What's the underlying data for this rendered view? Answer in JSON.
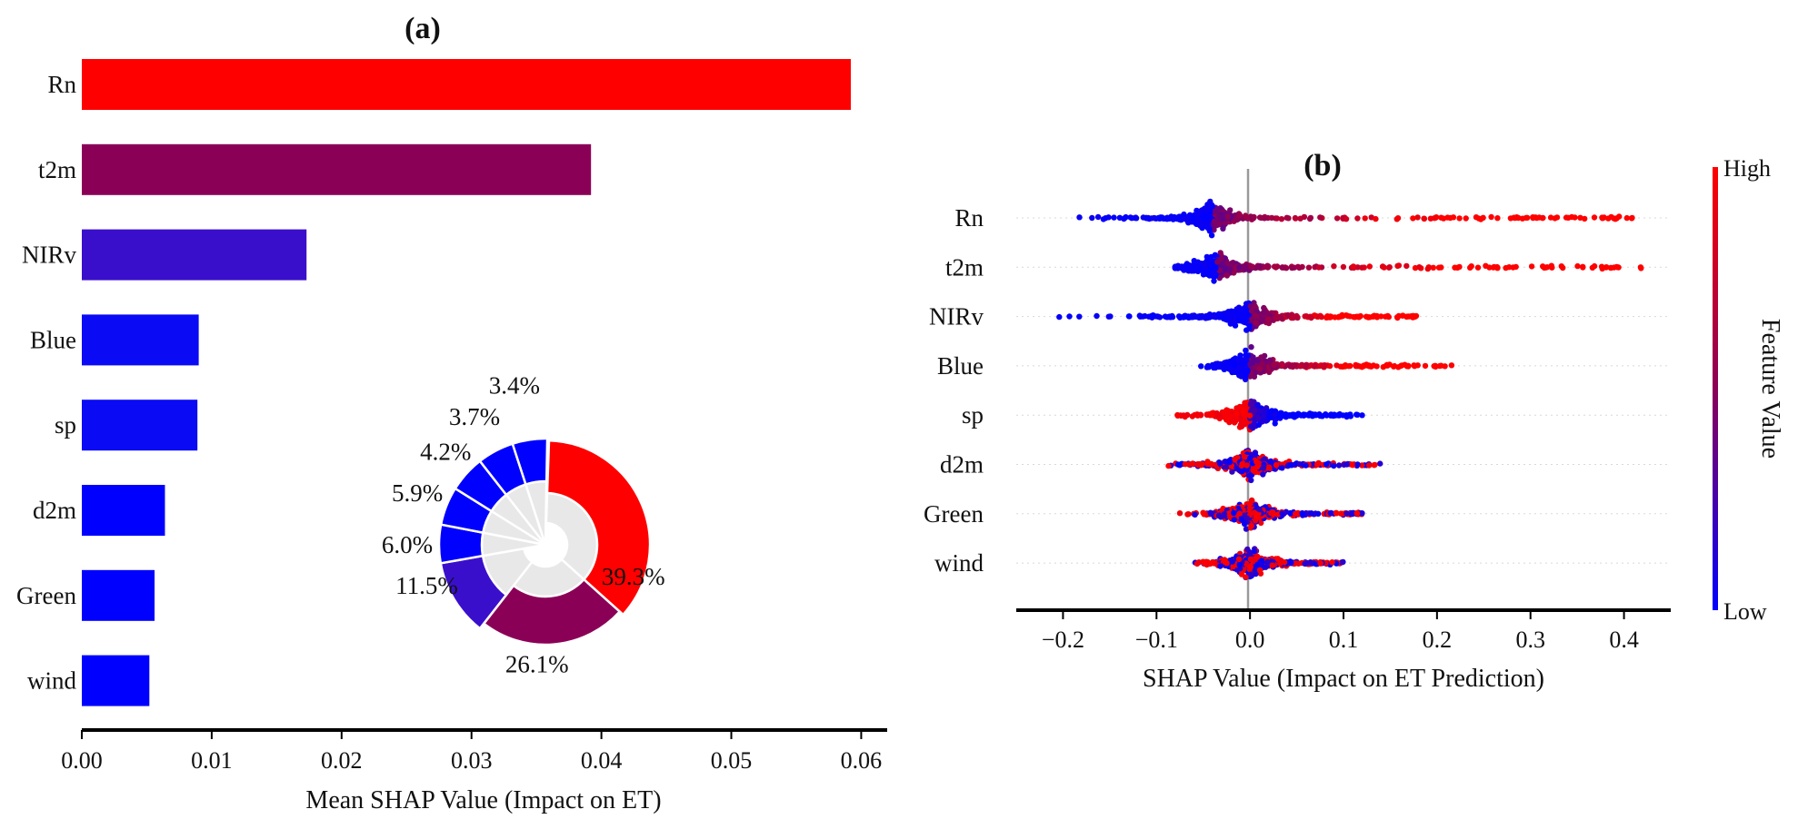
{
  "colors": {
    "high": "#ff0000",
    "mid": "#8b0057",
    "low": "#0000ff",
    "light": "#e8e8e8",
    "axis": "#000000",
    "zero_line": "#999999"
  },
  "chart_data": [
    {
      "panel_label": "(a)",
      "type": "bar",
      "orientation": "horizontal",
      "categories": [
        "Rn",
        "t2m",
        "NIRv",
        "Blue",
        "sp",
        "d2m",
        "Green",
        "wind"
      ],
      "values": [
        0.0592,
        0.0392,
        0.0173,
        0.009,
        0.0089,
        0.0064,
        0.0056,
        0.0052
      ],
      "bar_colors": [
        "#ff0000",
        "#8b0057",
        "#3a0fcc",
        "#0a0af5",
        "#0a0af5",
        "#0000ff",
        "#0000ff",
        "#0000ff"
      ],
      "xlabel": "Mean SHAP Value (Impact on ET)",
      "xlim": [
        0.0,
        0.062
      ],
      "xticks": [
        "0.00",
        "0.01",
        "0.02",
        "0.03",
        "0.04",
        "0.05",
        "0.06"
      ],
      "inset": {
        "type": "pie",
        "style": "polar-bar",
        "categories": [
          "Rn",
          "t2m",
          "NIRv",
          "Blue",
          "sp",
          "d2m",
          "Green",
          "wind"
        ],
        "values": [
          39.3,
          26.1,
          11.5,
          6.0,
          5.9,
          4.2,
          3.7,
          3.4
        ],
        "labels": [
          "39.3%",
          "26.1%",
          "11.5%",
          "6.0%",
          "5.9%",
          "4.2%",
          "3.7%",
          "3.4%"
        ],
        "colors": [
          "#ff0000",
          "#8b0057",
          "#3a0fcc",
          "#0000ff",
          "#0000ff",
          "#0000ff",
          "#0000ff",
          "#0000ff"
        ]
      }
    },
    {
      "panel_label": "(b)",
      "type": "scatter",
      "subtype": "beeswarm",
      "categories": [
        "Rn",
        "t2m",
        "NIRv",
        "Blue",
        "sp",
        "d2m",
        "Green",
        "wind"
      ],
      "series": [
        {
          "name": "Rn",
          "min": -0.19,
          "max": 0.41,
          "core": [
            -0.05,
            -0.03
          ],
          "low_side": "negative"
        },
        {
          "name": "t2m",
          "min": -0.08,
          "max": 0.42,
          "core": [
            -0.05,
            -0.02
          ],
          "low_side": "negative"
        },
        {
          "name": "NIRv",
          "min": -0.215,
          "max": 0.178,
          "core": [
            -0.01,
            0.01
          ],
          "low_side": "negative"
        },
        {
          "name": "Blue",
          "min": -0.07,
          "max": 0.218,
          "core": [
            -0.01,
            0.01
          ],
          "low_side": "negative"
        },
        {
          "name": "sp",
          "min": -0.1,
          "max": 0.12,
          "core": [
            -0.01,
            0.01
          ],
          "low_side": "positive"
        },
        {
          "name": "d2m",
          "min": -0.115,
          "max": 0.14,
          "core": [
            -0.01,
            0.01
          ],
          "low_side": "mixed"
        },
        {
          "name": "Green",
          "min": -0.088,
          "max": 0.12,
          "core": [
            -0.01,
            0.01
          ],
          "low_side": "mixed"
        },
        {
          "name": "wind",
          "min": -0.075,
          "max": 0.105,
          "core": [
            -0.01,
            0.01
          ],
          "low_side": "mixed"
        }
      ],
      "xlabel": "SHAP Value (Impact on ET Prediction)",
      "xlim": [
        -0.25,
        0.45
      ],
      "xticks": [
        "−0.2",
        "−0.1",
        "0.0",
        "0.1",
        "0.2",
        "0.3",
        "0.4"
      ],
      "xtick_values": [
        -0.2,
        -0.1,
        0.0,
        0.1,
        0.2,
        0.3,
        0.4
      ],
      "colorbar": {
        "title": "Feature Value",
        "high_label": "High",
        "low_label": "Low"
      }
    }
  ]
}
